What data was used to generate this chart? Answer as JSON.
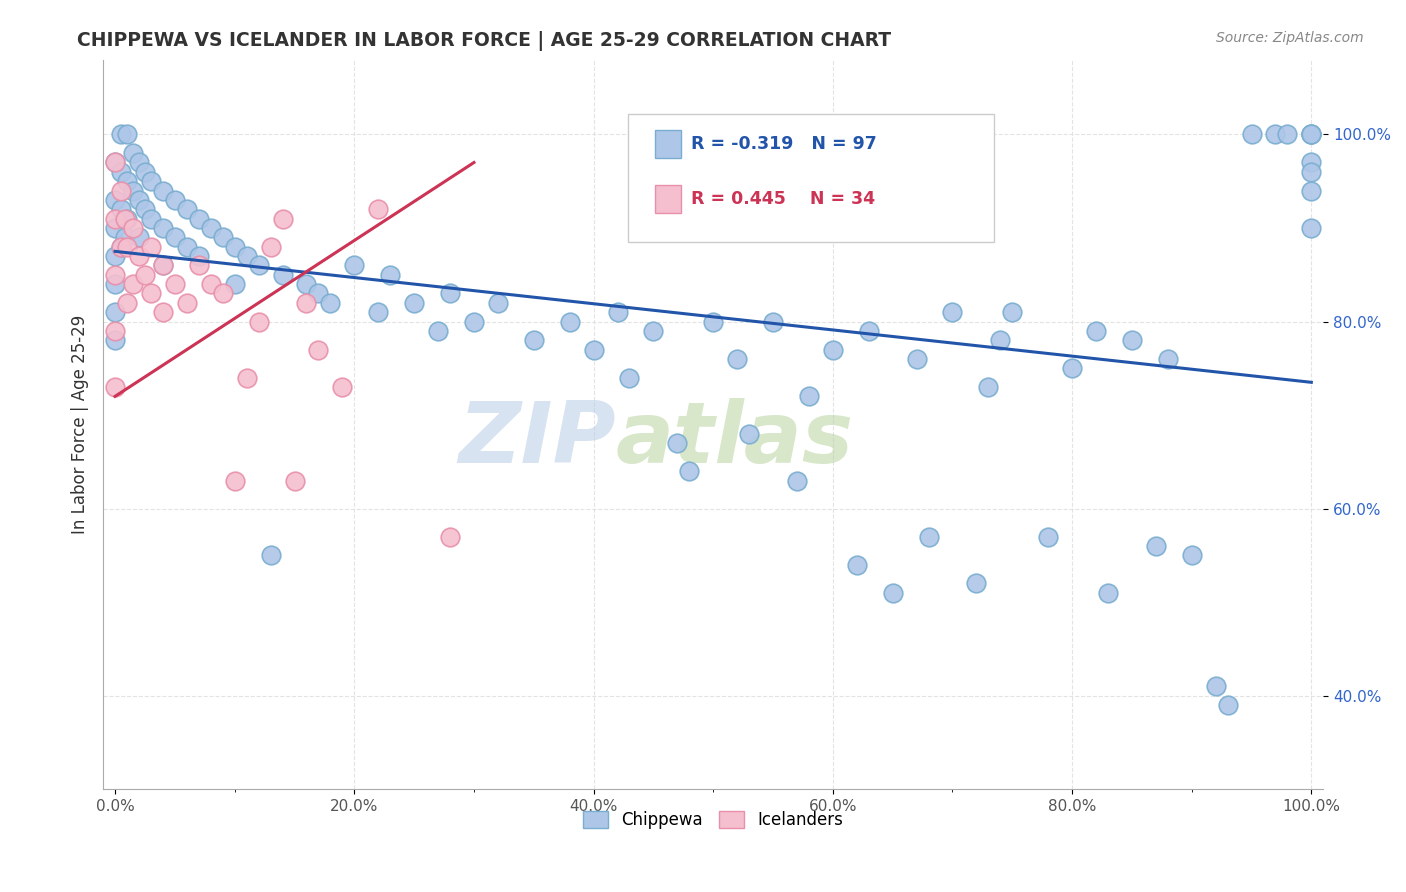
{
  "title": "CHIPPEWA VS ICELANDER IN LABOR FORCE | AGE 25-29 CORRELATION CHART",
  "source_text": "Source: ZipAtlas.com",
  "ylabel": "In Labor Force | Age 25-29",
  "xlim": [
    -0.01,
    1.01
  ],
  "ylim": [
    0.3,
    1.08
  ],
  "xtick_labels": [
    "0.0%",
    "",
    "",
    "",
    "",
    "",
    "",
    "",
    "",
    "",
    "20.0%",
    "",
    "",
    "",
    "",
    "",
    "",
    "",
    "",
    "",
    "40.0%",
    "",
    "",
    "",
    "",
    "",
    "",
    "",
    "",
    "",
    "60.0%",
    "",
    "",
    "",
    "",
    "",
    "",
    "",
    "",
    "",
    "80.0%",
    "",
    "",
    "",
    "",
    "",
    "",
    "",
    "",
    "",
    "100.0%"
  ],
  "xtick_vals": [
    0.0,
    0.02,
    0.04,
    0.06,
    0.08,
    0.1,
    0.12,
    0.14,
    0.16,
    0.18,
    0.2,
    0.22,
    0.24,
    0.26,
    0.28,
    0.3,
    0.32,
    0.34,
    0.36,
    0.38,
    0.4,
    0.42,
    0.44,
    0.46,
    0.48,
    0.5,
    0.52,
    0.54,
    0.56,
    0.58,
    0.6,
    0.62,
    0.64,
    0.66,
    0.68,
    0.7,
    0.72,
    0.74,
    0.76,
    0.78,
    0.8,
    0.82,
    0.84,
    0.86,
    0.88,
    0.9,
    0.92,
    0.94,
    0.96,
    0.98,
    1.0
  ],
  "ytick_labels": [
    "40.0%",
    "60.0%",
    "80.0%",
    "100.0%"
  ],
  "ytick_vals": [
    0.4,
    0.6,
    0.8,
    1.0
  ],
  "chippewa_color": "#aec6e8",
  "icelander_color": "#f5bfcf",
  "chippewa_edge": "#7aaed0",
  "icelander_edge": "#e890aa",
  "chippewa_line_color": "#2255aa",
  "icelander_line_color": "#cc3355",
  "ytick_color": "#3366cc",
  "watermark_color_zip": "#b8cce4",
  "watermark_color_atlas": "#c8dab0",
  "R_chippewa": -0.319,
  "N_chippewa": 97,
  "R_icelander": 0.445,
  "N_icelander": 34,
  "chip_line_x0": 0.0,
  "chip_line_y0": 0.875,
  "chip_line_x1": 1.0,
  "chip_line_y1": 0.735,
  "icel_line_x0": 0.0,
  "icel_line_y0": 0.72,
  "icel_line_x1": 0.3,
  "icel_line_y1": 0.97,
  "chippewa_x": [
    0.0,
    0.0,
    0.0,
    0.0,
    0.0,
    0.0,
    0.0,
    0.005,
    0.005,
    0.005,
    0.005,
    0.008,
    0.01,
    0.01,
    0.01,
    0.015,
    0.015,
    0.02,
    0.02,
    0.02,
    0.025,
    0.025,
    0.03,
    0.03,
    0.04,
    0.04,
    0.04,
    0.05,
    0.05,
    0.06,
    0.06,
    0.07,
    0.07,
    0.08,
    0.09,
    0.1,
    0.1,
    0.11,
    0.12,
    0.13,
    0.14,
    0.16,
    0.17,
    0.18,
    0.2,
    0.22,
    0.23,
    0.25,
    0.27,
    0.28,
    0.3,
    0.32,
    0.35,
    0.38,
    0.4,
    0.42,
    0.43,
    0.45,
    0.47,
    0.48,
    0.5,
    0.52,
    0.53,
    0.55,
    0.57,
    0.58,
    0.6,
    0.62,
    0.63,
    0.65,
    0.67,
    0.68,
    0.7,
    0.72,
    0.73,
    0.74,
    0.75,
    0.78,
    0.8,
    0.82,
    0.83,
    0.85,
    0.87,
    0.88,
    0.9,
    0.92,
    0.93,
    0.95,
    0.97,
    0.98,
    1.0,
    1.0,
    1.0,
    1.0,
    1.0,
    1.0,
    1.0
  ],
  "chippewa_y": [
    0.97,
    0.93,
    0.9,
    0.87,
    0.84,
    0.81,
    0.78,
    1.0,
    0.96,
    0.92,
    0.88,
    0.89,
    1.0,
    0.95,
    0.91,
    0.98,
    0.94,
    0.97,
    0.93,
    0.89,
    0.96,
    0.92,
    0.95,
    0.91,
    0.94,
    0.9,
    0.86,
    0.93,
    0.89,
    0.92,
    0.88,
    0.91,
    0.87,
    0.9,
    0.89,
    0.88,
    0.84,
    0.87,
    0.86,
    0.55,
    0.85,
    0.84,
    0.83,
    0.82,
    0.86,
    0.81,
    0.85,
    0.82,
    0.79,
    0.83,
    0.8,
    0.82,
    0.78,
    0.8,
    0.77,
    0.81,
    0.74,
    0.79,
    0.67,
    0.64,
    0.8,
    0.76,
    0.68,
    0.8,
    0.63,
    0.72,
    0.77,
    0.54,
    0.79,
    0.51,
    0.76,
    0.57,
    0.81,
    0.52,
    0.73,
    0.78,
    0.81,
    0.57,
    0.75,
    0.79,
    0.51,
    0.78,
    0.56,
    0.76,
    0.55,
    0.41,
    0.39,
    1.0,
    1.0,
    1.0,
    1.0,
    0.97,
    0.94,
    1.0,
    0.96,
    0.9,
    1.0
  ],
  "icelander_x": [
    0.0,
    0.0,
    0.0,
    0.0,
    0.0,
    0.005,
    0.005,
    0.008,
    0.01,
    0.01,
    0.015,
    0.015,
    0.02,
    0.025,
    0.03,
    0.03,
    0.04,
    0.04,
    0.05,
    0.06,
    0.07,
    0.08,
    0.09,
    0.1,
    0.11,
    0.12,
    0.13,
    0.14,
    0.15,
    0.16,
    0.17,
    0.19,
    0.22,
    0.28
  ],
  "icelander_y": [
    0.97,
    0.91,
    0.85,
    0.79,
    0.73,
    0.94,
    0.88,
    0.91,
    0.88,
    0.82,
    0.9,
    0.84,
    0.87,
    0.85,
    0.88,
    0.83,
    0.86,
    0.81,
    0.84,
    0.82,
    0.86,
    0.84,
    0.83,
    0.63,
    0.74,
    0.8,
    0.88,
    0.91,
    0.63,
    0.82,
    0.77,
    0.73,
    0.92,
    0.57
  ]
}
